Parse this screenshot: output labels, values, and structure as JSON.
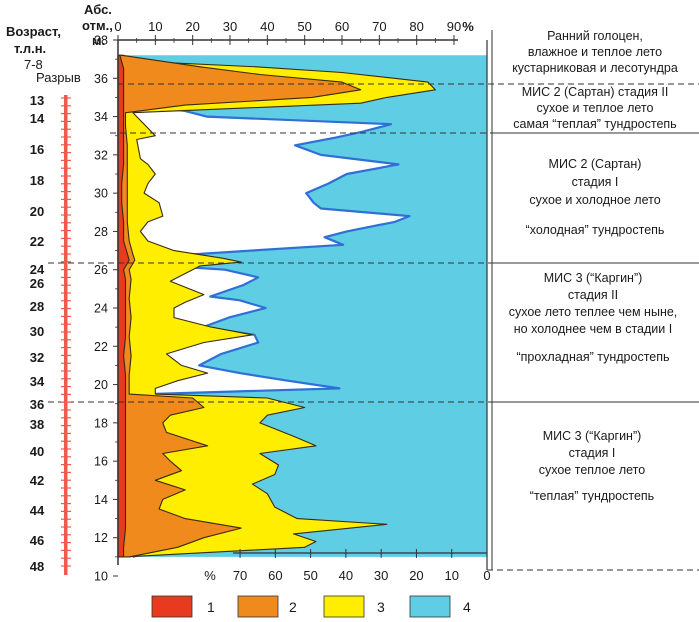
{
  "header": {
    "age_label_line1": "Возраст,",
    "age_label_line2": "т.л.н.",
    "age_label_line3": "7-8",
    "gap_label": "Разрыв",
    "alt_label_line1": "Абс.",
    "alt_label_line2": "отм.,",
    "alt_label_line3": "м."
  },
  "colors": {
    "c1_red": "#e83a1e",
    "c2_orange": "#f08a1c",
    "c3_yellow": "#ffee00",
    "c4_blue": "#5fcde4",
    "blue_line": "#2f6fd6",
    "dark_line": "#3a2a10",
    "age_bar": "#ef5a4a"
  },
  "zones": [
    {
      "line1": "Ранний голоцен,",
      "line2": "влажное и теплое лето",
      "line3": "кустарниковая и лесотундра",
      "line4": "",
      "line5": ""
    },
    {
      "line1": "МИС 2  (Сартан) стадия II",
      "line2": "сухое и теплое лето",
      "line3": "самая “теплая” тундростепь",
      "line4": "",
      "line5": ""
    },
    {
      "line1": "МИС 2 (Сартан)",
      "line2": "стадия I",
      "line3": "сухое и холодное лето",
      "line4": "“холодная” тундростепь",
      "line5": ""
    },
    {
      "line1": "МИС 3 (“Каргин”)",
      "line2": "стадия II",
      "line3": "сухое  лето теплее чем ныне,",
      "line4": "но холоднее чем в стадии I",
      "line5": "“прохладная” тундростепь"
    },
    {
      "line1": "МИС 3 (“Каргин”)",
      "line2": "стадия I",
      "line3": "сухое теплое лето",
      "line4": "“теплая” тундростепь",
      "line5": ""
    }
  ],
  "legend": [
    {
      "label": "1",
      "color": "#e83a1e"
    },
    {
      "label": "2",
      "color": "#f08a1c"
    },
    {
      "label": "3",
      "color": "#ffee00"
    },
    {
      "label": "4",
      "color": "#5fcde4"
    }
  ],
  "chart_data": {
    "type": "area",
    "top_axis": {
      "ticks": [
        "0",
        "10",
        "20",
        "30",
        "40",
        "50",
        "60",
        "70",
        "80",
        "90"
      ],
      "unit": "%",
      "range": [
        0,
        90
      ]
    },
    "bottom_axis": {
      "ticks": [
        "70",
        "60",
        "50",
        "40",
        "30",
        "20",
        "10",
        "0"
      ],
      "unit": "%",
      "range": [
        70,
        0
      ]
    },
    "altitude_ticks": [
      "38",
      "36",
      "34",
      "32",
      "30",
      "28",
      "26",
      "24",
      "22",
      "20",
      "18",
      "16",
      "14",
      "12",
      "10"
    ],
    "age_ticks": [
      "13",
      "14",
      "16",
      "18",
      "20",
      "22",
      "24",
      "26",
      "28",
      "30",
      "32",
      "34",
      "36",
      "38",
      "40",
      "42",
      "44",
      "46",
      "48"
    ],
    "altitude_range": [
      10,
      38
    ],
    "series": [
      {
        "name": "1",
        "points": [
          [
            37.2,
            0.5
          ],
          [
            36.5,
            1.5
          ],
          [
            35.5,
            1.5
          ],
          [
            34.5,
            1.5
          ],
          [
            33.5,
            1.5
          ],
          [
            32.5,
            1.5
          ],
          [
            31.5,
            1.5
          ],
          [
            30.5,
            1.0
          ],
          [
            29.5,
            1.0
          ],
          [
            28.5,
            1.5
          ],
          [
            27.5,
            1.5
          ],
          [
            26.5,
            3.0
          ],
          [
            26.0,
            1.5
          ],
          [
            25.5,
            2.0
          ],
          [
            24.5,
            2.0
          ],
          [
            23.5,
            2.0
          ],
          [
            22.5,
            2.0
          ],
          [
            21.5,
            1.5
          ],
          [
            20.5,
            2.0
          ],
          [
            19.5,
            2.0
          ],
          [
            18.5,
            2.0
          ],
          [
            17.5,
            2.0
          ],
          [
            16.5,
            2.0
          ],
          [
            15.5,
            2.0
          ],
          [
            14.5,
            2.0
          ],
          [
            13.5,
            2.0
          ],
          [
            12.5,
            2.0
          ],
          [
            11.5,
            1.5
          ],
          [
            11.0,
            1.5
          ]
        ]
      },
      {
        "name": "2",
        "points": [
          [
            37.2,
            1.0
          ],
          [
            36.6,
            22
          ],
          [
            36.2,
            38
          ],
          [
            35.8,
            60
          ],
          [
            35.4,
            65
          ],
          [
            35.0,
            52
          ],
          [
            34.6,
            18
          ],
          [
            34.2,
            2
          ],
          [
            33.5,
            2
          ],
          [
            32.5,
            2.5
          ],
          [
            31.5,
            2.5
          ],
          [
            30.5,
            2.5
          ],
          [
            29.5,
            2.5
          ],
          [
            28.5,
            2.5
          ],
          [
            27.5,
            3
          ],
          [
            26.8,
            4
          ],
          [
            26.5,
            4.5
          ],
          [
            26.0,
            3
          ],
          [
            25.5,
            3.5
          ],
          [
            24.5,
            3.0
          ],
          [
            23.5,
            3.5
          ],
          [
            22.5,
            3.0
          ],
          [
            21.5,
            3.5
          ],
          [
            20.5,
            3.0
          ],
          [
            19.5,
            3.0
          ],
          [
            19.3,
            20
          ],
          [
            18.8,
            23
          ],
          [
            18.4,
            14
          ],
          [
            18.0,
            12
          ],
          [
            17.5,
            13
          ],
          [
            16.8,
            24
          ],
          [
            16.4,
            12
          ],
          [
            16.0,
            14
          ],
          [
            15.5,
            17
          ],
          [
            15.0,
            10
          ],
          [
            14.5,
            18
          ],
          [
            14.0,
            12
          ],
          [
            13.5,
            11
          ],
          [
            13.0,
            18
          ],
          [
            12.5,
            33
          ],
          [
            12.0,
            23
          ],
          [
            11.5,
            16
          ],
          [
            11.0,
            3
          ]
        ]
      },
      {
        "name": "3",
        "points": [
          [
            37.2,
            1.5
          ],
          [
            36.9,
            4
          ],
          [
            36.6,
            37
          ],
          [
            36.3,
            60
          ],
          [
            35.8,
            83
          ],
          [
            35.4,
            85
          ],
          [
            35.0,
            72
          ],
          [
            34.7,
            65
          ],
          [
            34.2,
            4
          ],
          [
            33.8,
            6
          ],
          [
            33.0,
            10
          ],
          [
            32.8,
            5
          ],
          [
            31.8,
            6
          ],
          [
            31.5,
            8
          ],
          [
            31.0,
            10
          ],
          [
            30.5,
            8
          ],
          [
            30.0,
            7
          ],
          [
            29.5,
            11
          ],
          [
            28.8,
            12
          ],
          [
            28.5,
            8
          ],
          [
            28.0,
            6
          ],
          [
            27.5,
            8
          ],
          [
            27.0,
            15
          ],
          [
            26.6,
            28
          ],
          [
            26.4,
            33
          ],
          [
            26.2,
            22
          ],
          [
            25.6,
            16
          ],
          [
            25.4,
            14
          ],
          [
            24.7,
            23
          ],
          [
            24.3,
            18
          ],
          [
            24.0,
            15
          ],
          [
            23.5,
            15
          ],
          [
            23.0,
            25
          ],
          [
            22.6,
            36
          ],
          [
            22.2,
            23
          ],
          [
            21.6,
            13
          ],
          [
            21.0,
            17
          ],
          [
            20.6,
            24
          ],
          [
            20.2,
            16
          ],
          [
            19.8,
            10
          ],
          [
            19.5,
            10
          ],
          [
            19.3,
            40
          ],
          [
            18.8,
            50
          ],
          [
            18.4,
            40
          ],
          [
            18.0,
            38
          ],
          [
            17.3,
            47
          ],
          [
            16.8,
            53
          ],
          [
            16.4,
            38
          ],
          [
            15.8,
            43
          ],
          [
            15.3,
            42
          ],
          [
            14.8,
            36
          ],
          [
            14.3,
            40
          ],
          [
            13.6,
            42
          ],
          [
            13.0,
            48
          ],
          [
            12.7,
            72
          ],
          [
            12.2,
            47
          ],
          [
            11.8,
            53
          ],
          [
            11.5,
            50
          ],
          [
            11.0,
            2
          ]
        ]
      },
      {
        "name": "4",
        "points": [
          [
            37.2,
            99
          ],
          [
            36.9,
            99
          ],
          [
            36.6,
            97
          ],
          [
            36.3,
            97
          ],
          [
            35.8,
            97
          ],
          [
            35.4,
            97
          ],
          [
            35.0,
            86
          ],
          [
            34.8,
            92
          ],
          [
            34.6,
            97
          ],
          [
            34.3,
            82
          ],
          [
            34.0,
            76
          ],
          [
            33.6,
            26
          ],
          [
            33.2,
            34
          ],
          [
            32.9,
            41
          ],
          [
            32.5,
            52
          ],
          [
            32.0,
            45
          ],
          [
            31.5,
            24
          ],
          [
            31.0,
            38
          ],
          [
            30.5,
            43
          ],
          [
            30.0,
            49
          ],
          [
            29.5,
            47
          ],
          [
            29.2,
            45
          ],
          [
            28.8,
            21
          ],
          [
            28.5,
            25
          ],
          [
            28.0,
            38
          ],
          [
            27.7,
            44
          ],
          [
            27.3,
            39
          ],
          [
            27.0,
            64
          ],
          [
            26.7,
            88
          ],
          [
            26.3,
            95
          ],
          [
            26.0,
            71
          ],
          [
            25.6,
            62
          ],
          [
            25.2,
            66
          ],
          [
            24.6,
            75
          ],
          [
            24.4,
            67
          ],
          [
            24.0,
            60
          ],
          [
            23.5,
            70
          ],
          [
            23.0,
            77
          ],
          [
            22.6,
            63
          ],
          [
            22.2,
            62
          ],
          [
            21.6,
            72
          ],
          [
            21.0,
            78
          ],
          [
            20.6,
            67
          ],
          [
            20.2,
            54
          ],
          [
            19.8,
            40
          ],
          [
            19.5,
            92
          ],
          [
            19.0,
            66
          ],
          [
            18.6,
            94
          ],
          [
            18.2,
            87
          ],
          [
            17.8,
            90
          ],
          [
            17.2,
            81
          ],
          [
            16.8,
            90
          ],
          [
            16.4,
            88
          ],
          [
            15.8,
            83
          ],
          [
            15.4,
            79
          ],
          [
            15.0,
            88
          ],
          [
            14.6,
            96
          ],
          [
            14.2,
            89
          ],
          [
            13.6,
            94
          ],
          [
            13.0,
            98
          ],
          [
            12.6,
            93
          ],
          [
            12.2,
            92
          ],
          [
            11.7,
            96
          ],
          [
            11.4,
            90
          ],
          [
            11.0,
            96
          ]
        ]
      }
    ]
  }
}
